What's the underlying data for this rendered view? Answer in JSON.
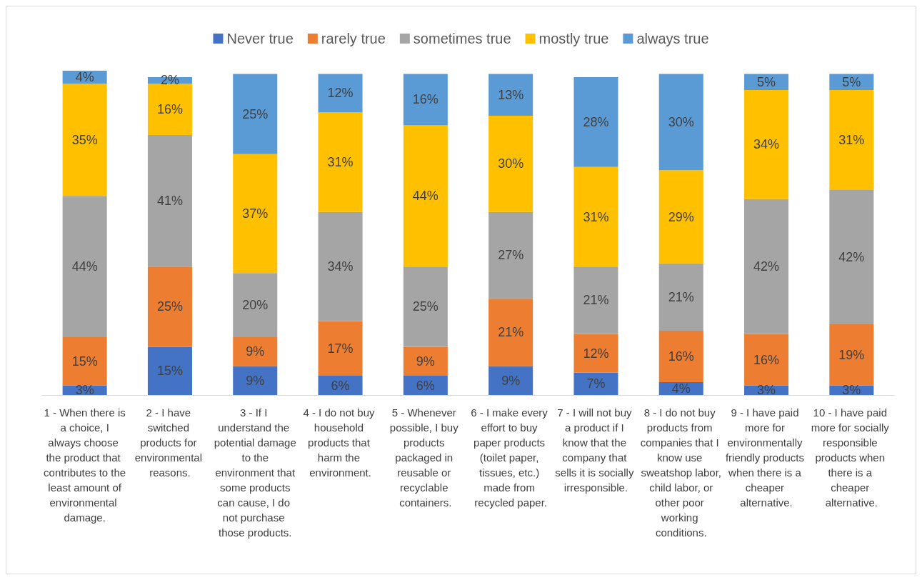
{
  "chart_data": {
    "type": "bar",
    "stacked": true,
    "legend": "top",
    "grid": false,
    "categories": [
      "1 - When there is a choice, I always choose the product that contributes to the least amount of environmental damage.",
      "2 - I have switched products for environmental reasons.",
      "3 - If I understand the potential damage to the environment that some products can cause, I do not purchase those products.",
      "4 - I do not buy household products that harm the environment.",
      "5 - Whenever possible, I buy products packaged in reusable or recyclable containers.",
      "6 - I make every effort to buy paper products (toilet paper, tissues, etc.) made from recycled paper.",
      "7 - I will not buy a product if I know that the company that sells it is socially irresponsible.",
      "8 - I do not buy products from companies that I know use sweatshop labor, child labor, or other poor working conditions.",
      "9 - I have paid more for environmentally friendly products when there is a cheaper alternative.",
      "10 - I have paid more for socially responsible products when there is a cheaper alternative."
    ],
    "series": [
      {
        "name": "Never true",
        "color": "#4472c4",
        "values": [
          3,
          15,
          9,
          6,
          6,
          9,
          7,
          4,
          3,
          3
        ],
        "value_labels": [
          "3%",
          "15%",
          "9%",
          "6%",
          "6%",
          "9%",
          "7%",
          "4%",
          "3%",
          "3%"
        ]
      },
      {
        "name": "rarely true",
        "color": "#ed7d31",
        "values": [
          15,
          25,
          9,
          17,
          9,
          21,
          12,
          16,
          16,
          19
        ],
        "value_labels": [
          "15%",
          "25%",
          "9%",
          "17%",
          "9%",
          "21%",
          "12%",
          "16%",
          "16%",
          "19%"
        ]
      },
      {
        "name": "sometimes true",
        "color": "#a5a5a5",
        "values": [
          44,
          41,
          20,
          34,
          25,
          27,
          21,
          21,
          42,
          42
        ],
        "value_labels": [
          "44%",
          "41%",
          "20%",
          "34%",
          "25%",
          "27%",
          "21%",
          "21%",
          "42%",
          "42%"
        ]
      },
      {
        "name": "mostly true",
        "color": "#ffc000",
        "values": [
          35,
          16,
          37,
          31,
          44,
          30,
          31,
          29,
          34,
          31
        ],
        "value_labels": [
          "35%",
          "16%",
          "37%",
          "31%",
          "44%",
          "30%",
          "31%",
          "29%",
          "34%",
          "31%"
        ]
      },
      {
        "name": "always true",
        "color": "#5b9bd5",
        "values": [
          4,
          2,
          25,
          12,
          16,
          13,
          28,
          30,
          5,
          5
        ],
        "value_labels": [
          "4%",
          "2%",
          "25%",
          "12%",
          "16%",
          "13%",
          "28%",
          "30%",
          "5%",
          "5%"
        ]
      }
    ]
  }
}
